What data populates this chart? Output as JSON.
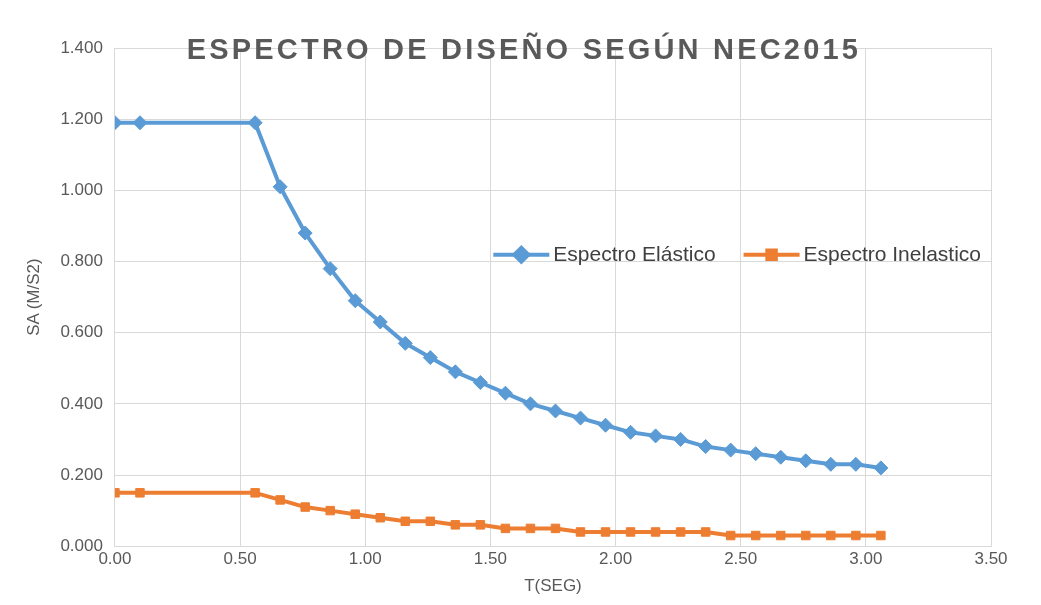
{
  "chart_data": {
    "type": "line",
    "title": "ESPECTRO DE DISEÑO SEGÚN NEC2015",
    "xlabel": "T(SEG)",
    "ylabel": "SA (M/S2)",
    "x": [
      0,
      0.1,
      0.56,
      0.66,
      0.76,
      0.86,
      0.96,
      1.06,
      1.16,
      1.26,
      1.36,
      1.46,
      1.56,
      1.66,
      1.76,
      1.86,
      1.96,
      2.06,
      2.16,
      2.26,
      2.36,
      2.46,
      2.56,
      2.66,
      2.76,
      2.86,
      2.96,
      3.06
    ],
    "series": [
      {
        "name": "Espectro Elástico",
        "color": "#5b9bd5",
        "marker": "diamond",
        "values": [
          1.19,
          1.19,
          1.19,
          1.01,
          0.88,
          0.78,
          0.69,
          0.63,
          0.57,
          0.53,
          0.49,
          0.46,
          0.43,
          0.4,
          0.38,
          0.36,
          0.34,
          0.32,
          0.31,
          0.3,
          0.28,
          0.27,
          0.26,
          0.25,
          0.24,
          0.23,
          0.23,
          0.22
        ]
      },
      {
        "name": "Espectro Inelastico",
        "color": "#ed7d31",
        "marker": "square",
        "values": [
          0.15,
          0.15,
          0.15,
          0.13,
          0.11,
          0.1,
          0.09,
          0.08,
          0.07,
          0.07,
          0.06,
          0.06,
          0.05,
          0.05,
          0.05,
          0.04,
          0.04,
          0.04,
          0.04,
          0.04,
          0.04,
          0.03,
          0.03,
          0.03,
          0.03,
          0.03,
          0.03,
          0.03
        ]
      }
    ],
    "xlim": [
      0,
      3.5
    ],
    "xticks": [
      {
        "value": 0,
        "label": "0.00"
      },
      {
        "value": 0.5,
        "label": "0.50"
      },
      {
        "value": 1,
        "label": "1.00"
      },
      {
        "value": 1.5,
        "label": "1.50"
      },
      {
        "value": 2,
        "label": "2.00"
      },
      {
        "value": 2.5,
        "label": "2.50"
      },
      {
        "value": 3,
        "label": "3.00"
      },
      {
        "value": 3.5,
        "label": "3.50"
      }
    ],
    "ylim": [
      0,
      1.4
    ],
    "yticks": [
      {
        "value": 0,
        "label": "0.000"
      },
      {
        "value": 0.2,
        "label": "0.200"
      },
      {
        "value": 0.4,
        "label": "0.400"
      },
      {
        "value": 0.6,
        "label": "0.600"
      },
      {
        "value": 0.8,
        "label": "0.800"
      },
      {
        "value": 1,
        "label": "1.000"
      },
      {
        "value": 1.2,
        "label": "1.200"
      },
      {
        "value": 1.4,
        "label": "1.400"
      }
    ],
    "grid": true,
    "legend": "right",
    "line_style": "solid"
  }
}
